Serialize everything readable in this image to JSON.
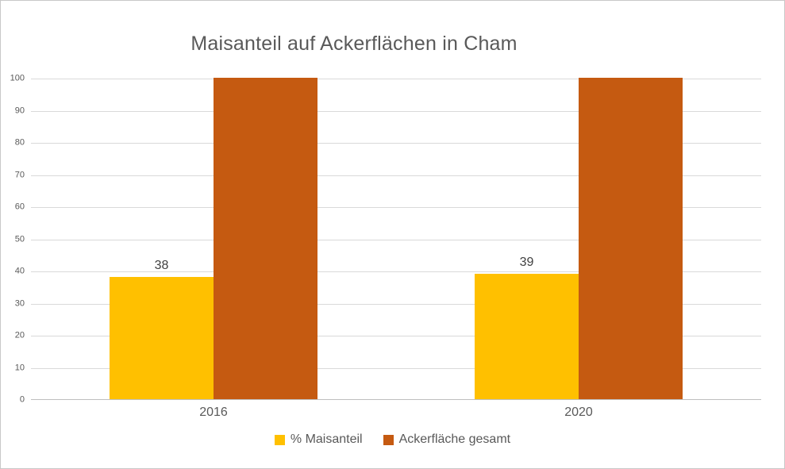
{
  "chart_data": {
    "type": "bar",
    "title": "Maisanteil auf Ackerflächen in Cham",
    "categories": [
      "2016",
      "2020"
    ],
    "series": [
      {
        "name": "% Maisanteil",
        "color": "#FFC000",
        "values": [
          38,
          39
        ],
        "show_labels": true
      },
      {
        "name": "Ackerfläche gesamt",
        "color": "#C55A11",
        "values": [
          100,
          100
        ],
        "show_labels": false
      }
    ],
    "ylim": [
      0,
      100
    ],
    "yticks": [
      0,
      10,
      20,
      30,
      40,
      50,
      60,
      70,
      80,
      90,
      100
    ],
    "grid": "horizontal",
    "legend_position": "bottom",
    "xlabel": "",
    "ylabel": ""
  },
  "colors": {
    "title_text": "#595959",
    "tick_text": "#595959",
    "data_label_text": "#404040",
    "gridline": "#D9D9D9",
    "axis_line": "#BFBFBF",
    "frame_border": "#C8C8C8",
    "background": "#FFFFFF"
  }
}
